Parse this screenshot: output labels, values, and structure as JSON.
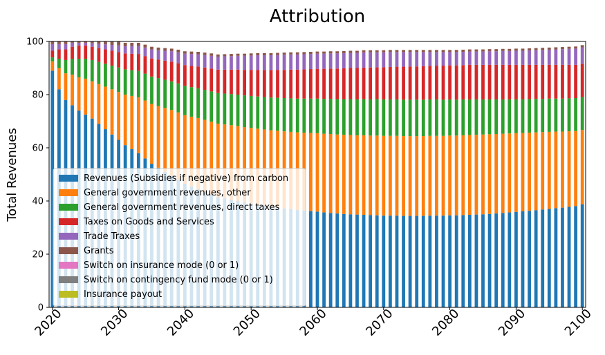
{
  "chart_data": {
    "type": "bar",
    "stacked": true,
    "title": "Attribution",
    "xlabel": "",
    "ylabel": "Total Revenues",
    "ylim": [
      0,
      100
    ],
    "yticks": [
      0,
      20,
      40,
      60,
      80,
      100
    ],
    "xticks": [
      "2020",
      "2030",
      "2040",
      "2050",
      "2060",
      "2070",
      "2080",
      "2090",
      "2100"
    ],
    "x_start": 2020,
    "x_end": 2100,
    "legend_position": "lower-left",
    "series": [
      {
        "name": "Revenues (Subsidies if negative) from carbon",
        "color": "#1f77b4",
        "values": [
          89,
          82,
          78,
          76,
          74,
          72.5,
          71,
          69,
          67,
          65,
          63,
          61,
          59.5,
          58,
          56,
          54,
          52.5,
          51,
          49.5,
          48,
          46.5,
          45.5,
          44.5,
          43.5,
          42.5,
          41.5,
          41,
          40.5,
          40,
          39.5,
          39,
          38.6,
          38.2,
          37.8,
          37.5,
          37.2,
          36.9,
          36.6,
          36.4,
          36.2,
          36,
          35.7,
          35.5,
          35.3,
          35.1,
          35,
          34.9,
          34.8,
          34.7,
          34.6,
          34.5,
          34.5,
          34.5,
          34.4,
          34.4,
          34.4,
          34.4,
          34.5,
          34.5,
          34.5,
          34.6,
          34.6,
          34.7,
          34.8,
          34.9,
          35,
          35.1,
          35.3,
          35.5,
          35.7,
          35.9,
          36.1,
          36.3,
          36.5,
          36.8,
          37,
          37.3,
          37.5,
          37.8,
          38.1,
          38.7
        ]
      },
      {
        "name": "General government revenues, other",
        "color": "#ff7f0e",
        "values": [
          3.5,
          8,
          10,
          11.5,
          12.5,
          13.5,
          14,
          15,
          16,
          17,
          18,
          19,
          20,
          21,
          21.8,
          22.5,
          23.2,
          24,
          24.7,
          25.3,
          25.8,
          26.2,
          26.7,
          27,
          27.3,
          27.6,
          27.8,
          28,
          28.2,
          28.3,
          28.5,
          28.6,
          28.7,
          28.8,
          28.9,
          29,
          29.1,
          29.2,
          29.3,
          29.4,
          29.5,
          29.6,
          29.7,
          29.7,
          29.8,
          29.8,
          29.8,
          29.9,
          29.9,
          30,
          30,
          30,
          30,
          30,
          30,
          30,
          30,
          30,
          30,
          30,
          30,
          30,
          30,
          30,
          30,
          30,
          30,
          29.9,
          29.8,
          29.7,
          29.6,
          29.5,
          29.4,
          29.3,
          29.1,
          29,
          28.8,
          28.6,
          28.4,
          28.2,
          28
        ]
      },
      {
        "name": "General government revenues, direct taxes",
        "color": "#2ca02c",
        "values": [
          1.5,
          3.5,
          5,
          6,
          7,
          7.5,
          8,
          8.3,
          8.6,
          8.9,
          9.2,
          9.5,
          9.7,
          9.9,
          10.1,
          10.3,
          10.5,
          10.6,
          10.8,
          10.9,
          11,
          11.1,
          11.2,
          11.3,
          11.4,
          11.5,
          11.6,
          11.7,
          11.8,
          11.9,
          12,
          12.1,
          12.2,
          12.3,
          12.4,
          12.5,
          12.6,
          12.7,
          12.8,
          12.9,
          13,
          13.1,
          13.2,
          13.3,
          13.4,
          13.5,
          13.5,
          13.6,
          13.6,
          13.7,
          13.7,
          13.7,
          13.7,
          13.7,
          13.7,
          13.7,
          13.7,
          13.7,
          13.7,
          13.6,
          13.6,
          13.5,
          13.5,
          13.4,
          13.3,
          13.2,
          13.1,
          13,
          12.9,
          12.8,
          12.7,
          12.7,
          12.6,
          12.6,
          12.5,
          12.5,
          12.4,
          12.4,
          12.4,
          12.4,
          12.4
        ]
      },
      {
        "name": "Taxes on Goods and Services",
        "color": "#d62728",
        "values": [
          2.5,
          3.5,
          4,
          4.5,
          5,
          5,
          5,
          5.2,
          5.4,
          5.6,
          5.8,
          6,
          6.2,
          6.4,
          6.6,
          6.8,
          7,
          7.2,
          7.4,
          7.6,
          7.8,
          8,
          8.2,
          8.4,
          8.6,
          8.8,
          9,
          9.2,
          9.4,
          9.6,
          9.8,
          10,
          10.1,
          10.3,
          10.5,
          10.6,
          10.8,
          10.9,
          11,
          11.1,
          11.2,
          11.3,
          11.4,
          11.5,
          11.6,
          11.7,
          11.8,
          11.9,
          12,
          12,
          12.1,
          12.2,
          12.3,
          12.4,
          12.5,
          12.5,
          12.6,
          12.6,
          12.7,
          12.8,
          12.8,
          12.9,
          12.9,
          13,
          13,
          13,
          13,
          13,
          13,
          13,
          13,
          12.9,
          12.9,
          12.8,
          12.8,
          12.7,
          12.7,
          12.7,
          12.6,
          12.5,
          12.5
        ]
      },
      {
        "name": "Trade Traxes",
        "color": "#9467bd",
        "values": [
          2.5,
          2,
          2,
          1.5,
          1,
          1,
          1.3,
          1.6,
          1.9,
          2.2,
          2.5,
          2.7,
          2.9,
          3,
          3.2,
          3.4,
          3.5,
          3.7,
          3.9,
          4.1,
          4.3,
          4.5,
          4.6,
          4.7,
          4.8,
          4.9,
          5,
          5.1,
          5.2,
          5.3,
          5.4,
          5.5,
          5.6,
          5.6,
          5.6,
          5.7,
          5.7,
          5.7,
          5.7,
          5.7,
          5.7,
          5.7,
          5.7,
          5.7,
          5.7,
          5.7,
          5.7,
          5.7,
          5.7,
          5.6,
          5.6,
          5.6,
          5.5,
          5.5,
          5.4,
          5.4,
          5.3,
          5.2,
          5.1,
          5.1,
          5,
          5,
          5,
          5,
          5,
          5,
          5.1,
          5.1,
          5.2,
          5.2,
          5.3,
          5.3,
          5.4,
          5.5,
          5.6,
          5.7,
          5.8,
          5.9,
          6,
          6.1,
          6.2
        ]
      },
      {
        "name": "Grants",
        "color": "#8c564b",
        "values": [
          1,
          1,
          1,
          0.5,
          0.5,
          0.5,
          0.7,
          0.9,
          1.1,
          1.3,
          1.5,
          1.3,
          1.2,
          1.2,
          1.1,
          1,
          1,
          1,
          1,
          1,
          0.9,
          0.9,
          0.9,
          0.9,
          0.9,
          0.8,
          0.8,
          0.8,
          0.8,
          0.8,
          0.8,
          0.8,
          0.8,
          0.8,
          0.8,
          0.8,
          0.8,
          0.8,
          0.8,
          0.8,
          0.8,
          0.8,
          0.8,
          0.8,
          0.8,
          0.8,
          0.8,
          0.8,
          0.8,
          0.8,
          0.8,
          0.8,
          0.8,
          0.8,
          0.8,
          0.8,
          0.8,
          0.8,
          0.8,
          0.8,
          0.8,
          0.8,
          0.8,
          0.8,
          0.8,
          0.8,
          0.8,
          0.8,
          0.8,
          0.8,
          0.8,
          0.8,
          0.8,
          0.8,
          0.8,
          0.8,
          0.8,
          0.8,
          0.8,
          0.8,
          0.8
        ]
      },
      {
        "name": "Switch on insurance mode (0 or 1)",
        "color": "#e377c2",
        "values": [
          0,
          0,
          0,
          0,
          0,
          0,
          0,
          0,
          0,
          0,
          0,
          0,
          0,
          0,
          0,
          0,
          0,
          0,
          0,
          0,
          0,
          0,
          0,
          0,
          0,
          0,
          0,
          0,
          0,
          0,
          0,
          0,
          0,
          0,
          0,
          0,
          0,
          0,
          0,
          0,
          0,
          0,
          0,
          0,
          0,
          0,
          0,
          0,
          0,
          0,
          0,
          0,
          0,
          0,
          0,
          0,
          0,
          0,
          0,
          0,
          0,
          0,
          0,
          0,
          0,
          0,
          0,
          0,
          0,
          0,
          0,
          0,
          0,
          0,
          0,
          0,
          0,
          0,
          0,
          0,
          0
        ]
      },
      {
        "name": "Switch on contingency fund mode (0 or 1)",
        "color": "#7f7f7f",
        "values": [
          0,
          0,
          0,
          0,
          0,
          0,
          0,
          0,
          0,
          0,
          0,
          0,
          0,
          0,
          0,
          0,
          0,
          0,
          0,
          0,
          0,
          0,
          0,
          0,
          0,
          0,
          0,
          0,
          0,
          0,
          0,
          0,
          0,
          0,
          0,
          0,
          0,
          0,
          0,
          0,
          0,
          0,
          0,
          0,
          0,
          0,
          0,
          0,
          0,
          0,
          0,
          0,
          0,
          0,
          0,
          0,
          0,
          0,
          0,
          0,
          0,
          0,
          0,
          0,
          0,
          0,
          0,
          0,
          0,
          0,
          0,
          0,
          0,
          0,
          0,
          0,
          0,
          0,
          0,
          0,
          0
        ]
      },
      {
        "name": "Insurance payout",
        "color": "#bcbd22",
        "values": [
          0,
          0,
          0,
          0,
          0,
          0,
          0,
          0,
          0,
          0,
          0,
          0,
          0,
          0,
          0,
          0,
          0,
          0,
          0,
          0,
          0,
          0,
          0,
          0,
          0,
          0,
          0,
          0,
          0,
          0,
          0,
          0,
          0,
          0,
          0,
          0,
          0,
          0,
          0,
          0,
          0,
          0,
          0,
          0,
          0,
          0,
          0,
          0,
          0,
          0,
          0,
          0,
          0,
          0,
          0,
          0,
          0,
          0,
          0,
          0,
          0,
          0,
          0,
          0,
          0,
          0,
          0,
          0,
          0,
          0,
          0,
          0,
          0,
          0,
          0,
          0,
          0,
          0,
          0,
          0,
          0
        ]
      }
    ]
  }
}
